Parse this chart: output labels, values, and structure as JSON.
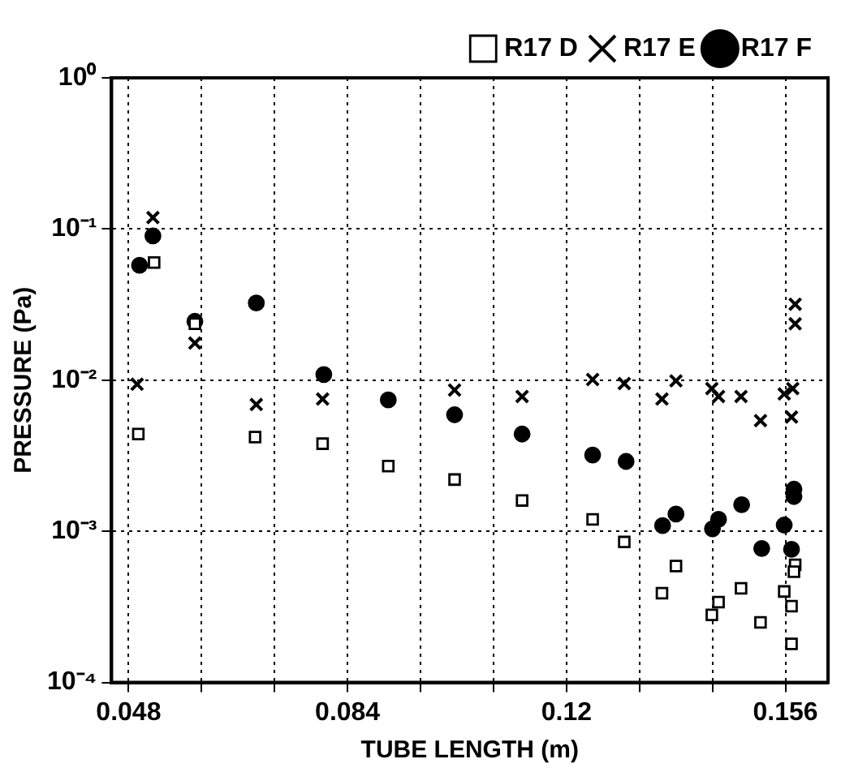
{
  "chart_data": {
    "type": "scatter",
    "xlabel": "TUBE LENGTH (m)",
    "ylabel": "PRESSURE (Pa)",
    "log": "y",
    "grid": true,
    "legend": "top right",
    "xlim": [
      0.0452,
      0.163
    ],
    "ylim": [
      0.0001,
      1
    ],
    "xticks": [
      0.048,
      {
        "value": 0.06,
        "label": null
      },
      {
        "value": 0.072,
        "label": null
      },
      0.084,
      {
        "value": 0.096,
        "label": null
      },
      {
        "value": 0.108,
        "label": null
      },
      0.12,
      {
        "value": 0.132,
        "label": null
      },
      {
        "value": 0.144,
        "label": null
      },
      0.156
    ],
    "yticks": [
      {
        "value": 0.0001,
        "label": "10⁻⁴"
      },
      {
        "value": 0.001,
        "label": "10⁻³"
      },
      {
        "value": 0.01,
        "label": "10⁻²"
      },
      {
        "value": 0.1,
        "label": "10⁻¹"
      },
      {
        "value": 1,
        "label": "10⁰"
      }
    ],
    "series": [
      {
        "name": "R17 D",
        "color": "#000000",
        "marker": "square",
        "x": [
          0.0522,
          0.0589,
          0.0496,
          0.0688,
          0.0799,
          0.0907,
          0.1016,
          0.1127,
          0.1243,
          0.1295,
          0.138,
          0.1357,
          0.145,
          0.1439,
          0.1487,
          0.1519,
          0.1558,
          0.1576,
          0.1574,
          0.157,
          0.157
        ],
        "values": [
          0.06,
          0.0236,
          0.0044,
          0.0042,
          0.0038,
          0.0027,
          0.0022,
          0.0016,
          0.0012,
          0.00085,
          0.00059,
          0.00039,
          0.00034,
          0.00028,
          0.00042,
          0.00025,
          0.0004,
          0.0006,
          0.00054,
          0.00032,
          0.00018
        ]
      },
      {
        "name": "R17 E",
        "color": "#000000",
        "marker": "cross",
        "x": [
          0.052,
          0.0589,
          0.0494,
          0.069,
          0.0799,
          0.1016,
          0.1127,
          0.1243,
          0.1295,
          0.138,
          0.1357,
          0.1439,
          0.145,
          0.1487,
          0.1519,
          0.1558,
          0.1572,
          0.157,
          0.1576,
          0.1576
        ],
        "values": [
          0.119,
          0.0176,
          0.0094,
          0.0069,
          0.0075,
          0.0086,
          0.0078,
          0.0101,
          0.0095,
          0.0099,
          0.0075,
          0.0088,
          0.0078,
          0.0078,
          0.0054,
          0.0081,
          0.0088,
          0.0057,
          0.0318,
          0.0236
        ]
      },
      {
        "name": "R17 F",
        "color": "#000000",
        "marker": "circle",
        "x": [
          0.052,
          0.0498,
          0.0589,
          0.069,
          0.0801,
          0.0907,
          0.1016,
          0.1127,
          0.1243,
          0.1298,
          0.1358,
          0.138,
          0.144,
          0.145,
          0.1488,
          0.1521,
          0.1558,
          0.1574,
          0.1574,
          0.157
        ],
        "values": [
          0.09,
          0.0575,
          0.0245,
          0.0324,
          0.0109,
          0.0074,
          0.0059,
          0.0044,
          0.0032,
          0.0029,
          0.00109,
          0.0013,
          0.00104,
          0.0012,
          0.0015,
          0.00077,
          0.0011,
          0.0019,
          0.0017,
          0.00076
        ]
      }
    ]
  }
}
